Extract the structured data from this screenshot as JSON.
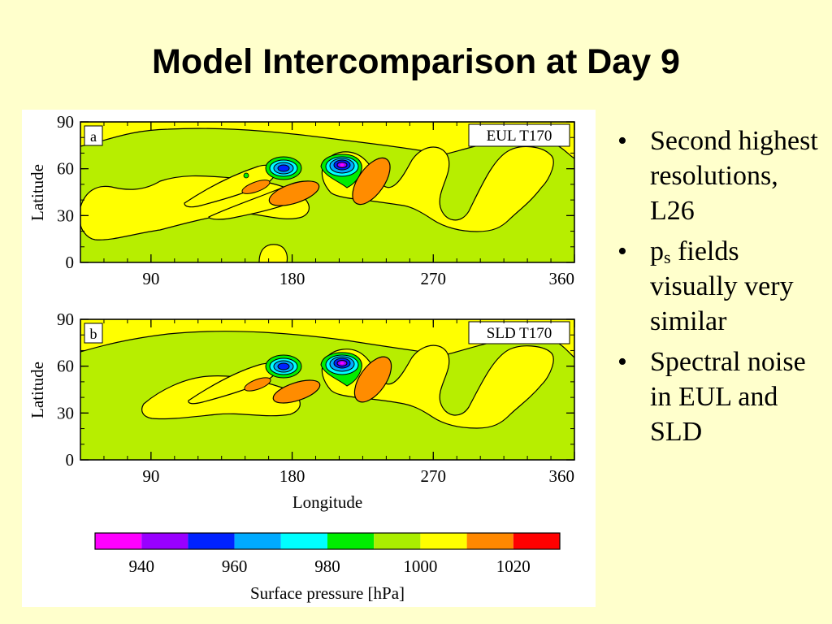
{
  "slide": {
    "title": "Model Intercomparison at Day 9"
  },
  "bullets": [
    {
      "text": "Second highest resolutions, L26"
    },
    {
      "pre": "p",
      "sub": "s",
      "post": " fields visually very similar"
    },
    {
      "text": "Spectral noise in EUL and SLD"
    }
  ],
  "bullet_symbol": "•",
  "chart_data": [
    {
      "type": "heatmap",
      "panel_letter": "a",
      "panel_label": "EUL T170",
      "ylabel": "Latitude",
      "xlabel": "",
      "x_ticks": [
        "90",
        "180",
        "270",
        "360"
      ],
      "y_ticks": [
        "0",
        "30",
        "60",
        "90"
      ],
      "xlim": [
        45,
        360
      ],
      "ylim": [
        0,
        90
      ],
      "background_value": 1000,
      "features": [
        {
          "kind": "low",
          "lon": 177,
          "lat": 58,
          "min_hPa": 960
        },
        {
          "kind": "low",
          "lon": 212,
          "lat": 61,
          "min_hPa": 945
        },
        {
          "kind": "high",
          "lon": 181,
          "lat": 43,
          "max_hPa": 1020
        },
        {
          "kind": "high",
          "lon": 238,
          "lat": 50,
          "max_hPa": 1020
        }
      ]
    },
    {
      "type": "heatmap",
      "panel_letter": "b",
      "panel_label": "SLD T170",
      "ylabel": "Latitude",
      "xlabel": "Longitude",
      "x_ticks": [
        "90",
        "180",
        "270",
        "360"
      ],
      "y_ticks": [
        "0",
        "30",
        "60",
        "90"
      ],
      "xlim": [
        45,
        360
      ],
      "ylim": [
        0,
        90
      ],
      "background_value": 1000,
      "features": [
        {
          "kind": "low",
          "lon": 177,
          "lat": 58,
          "min_hPa": 960
        },
        {
          "kind": "low",
          "lon": 212,
          "lat": 61,
          "min_hPa": 945
        },
        {
          "kind": "high",
          "lon": 181,
          "lat": 43,
          "max_hPa": 1020
        },
        {
          "kind": "high",
          "lon": 238,
          "lat": 50,
          "max_hPa": 1020
        }
      ]
    }
  ],
  "colorbar": {
    "label": "Surface pressure [hPa]",
    "tick_labels": [
      "940",
      "960",
      "980",
      "1000",
      "1020"
    ],
    "colors": [
      "#ff00ff",
      "#9900ff",
      "#0022ff",
      "#00aaff",
      "#00ffff",
      "#00ee00",
      "#aaee00",
      "#ffff00",
      "#ff8800",
      "#ff0000"
    ]
  },
  "colors": {
    "background": "#ffffcc",
    "field_base": "#b7ee00",
    "yellow": "#ffff00",
    "orange": "#ff8c00"
  }
}
